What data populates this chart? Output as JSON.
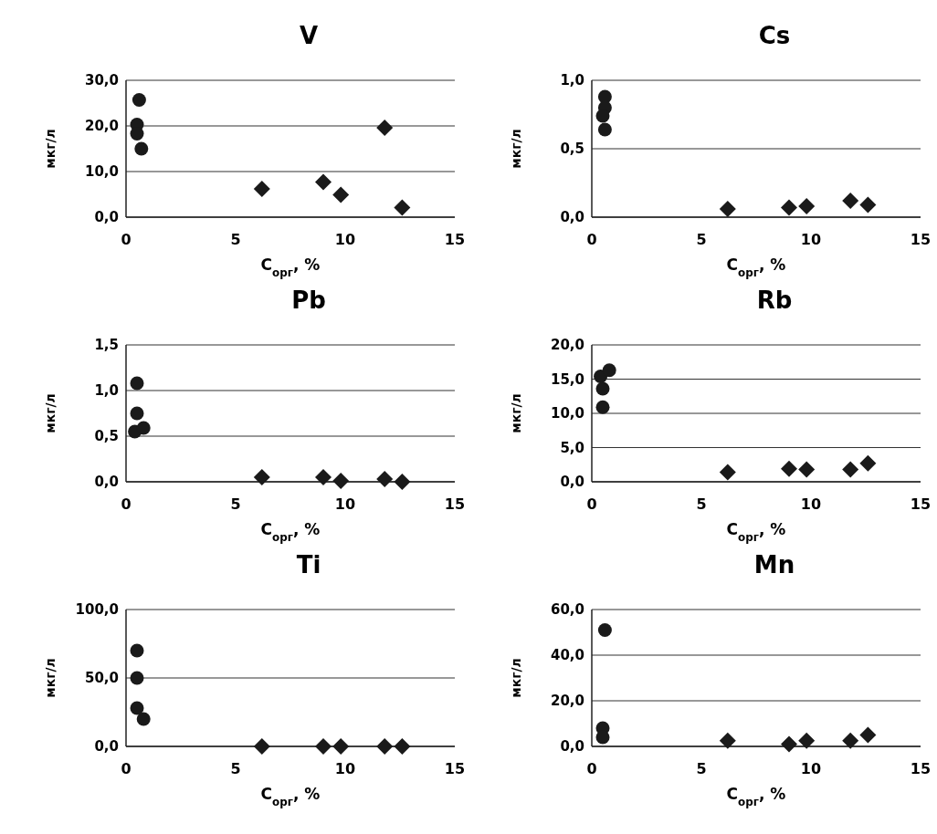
{
  "chart_data": [
    {
      "type": "scatter",
      "title": "V",
      "xlabel": "C$_{орг}$, %",
      "ylabel": "мкг/л",
      "xlim": [
        0,
        15
      ],
      "xticks": [
        0,
        5,
        10,
        15
      ],
      "ylim": [
        0,
        30
      ],
      "yticks": [
        {
          "value": 0,
          "label": "0,0"
        },
        {
          "value": 10,
          "label": "10,0"
        },
        {
          "value": 20,
          "label": "20,0"
        },
        {
          "value": 30,
          "label": "30,0"
        }
      ],
      "grid": "y",
      "series": [
        {
          "color": "#1a1a1a",
          "marker": "circle",
          "x": [
            0.6,
            0.5,
            0.5,
            0.7
          ],
          "values": [
            25.7,
            20.3,
            18.3,
            15
          ]
        },
        {
          "color": "#1a1a1a",
          "marker": "diamond",
          "x": [
            6.2,
            9.0,
            9.8,
            11.8,
            12.6
          ],
          "values": [
            6.2,
            7.7,
            4.9,
            19.6,
            2.1
          ]
        }
      ]
    },
    {
      "type": "scatter",
      "title": "Cs",
      "xlabel": "C$_{орг}$, %",
      "ylabel": "мкг/л",
      "xlim": [
        0,
        15
      ],
      "xticks": [
        0,
        5,
        10,
        15
      ],
      "ylim": [
        0,
        1
      ],
      "yticks": [
        {
          "value": 0,
          "label": "0,0"
        },
        {
          "value": 0.5,
          "label": "0,5"
        },
        {
          "value": 1,
          "label": "1,0"
        }
      ],
      "grid": "y",
      "series": [
        {
          "color": "#1a1a1a",
          "marker": "circle",
          "x": [
            0.6,
            0.6,
            0.5,
            0.6
          ],
          "values": [
            0.88,
            0.8,
            0.74,
            0.64
          ]
        },
        {
          "color": "#1a1a1a",
          "marker": "diamond",
          "x": [
            6.2,
            9.0,
            9.8,
            11.8,
            12.6
          ],
          "values": [
            0.06,
            0.07,
            0.08,
            0.12,
            0.09
          ]
        }
      ]
    },
    {
      "type": "scatter",
      "title": "Pb",
      "xlabel": "C$_{орг}$, %",
      "ylabel": "мкг/л",
      "xlim": [
        0,
        15
      ],
      "xticks": [
        0,
        5,
        10,
        15
      ],
      "ylim": [
        0,
        1.5
      ],
      "yticks": [
        {
          "value": 0,
          "label": "0,0"
        },
        {
          "value": 0.5,
          "label": "0,5"
        },
        {
          "value": 1,
          "label": "1,0"
        },
        {
          "value": 1.5,
          "label": "1,5"
        }
      ],
      "grid": "y",
      "series": [
        {
          "color": "#1a1a1a",
          "marker": "circle",
          "x": [
            0.5,
            0.5,
            0.4,
            0.8
          ],
          "values": [
            1.08,
            0.75,
            0.55,
            0.59
          ]
        },
        {
          "color": "#1a1a1a",
          "marker": "diamond",
          "x": [
            6.2,
            9.0,
            9.8,
            11.8,
            12.6
          ],
          "values": [
            0.05,
            0.05,
            0.01,
            0.03,
            0
          ]
        }
      ]
    },
    {
      "type": "scatter",
      "title": "Rb",
      "xlabel": "C$_{орг}$, %",
      "ylabel": "мкг/л",
      "xlim": [
        0,
        15
      ],
      "xticks": [
        0,
        5,
        10,
        15
      ],
      "ylim": [
        0,
        20
      ],
      "yticks": [
        {
          "value": 0,
          "label": "0,0"
        },
        {
          "value": 5,
          "label": "5,0"
        },
        {
          "value": 10,
          "label": "10,0"
        },
        {
          "value": 15,
          "label": "15,0"
        },
        {
          "value": 20,
          "label": "20,0"
        }
      ],
      "grid": "y",
      "series": [
        {
          "color": "#1a1a1a",
          "marker": "circle",
          "x": [
            0.4,
            0.5,
            0.5,
            0.8
          ],
          "values": [
            15.4,
            13.6,
            10.9,
            16.3
          ]
        },
        {
          "color": "#1a1a1a",
          "marker": "diamond",
          "x": [
            6.2,
            9.0,
            9.8,
            11.8,
            12.6
          ],
          "values": [
            1.4,
            1.9,
            1.8,
            1.8,
            2.7
          ]
        }
      ]
    },
    {
      "type": "scatter",
      "title": "Ti",
      "xlabel": "C$_{орг}$, %",
      "ylabel": "мкг/л",
      "xlim": [
        0,
        15
      ],
      "xticks": [
        0,
        5,
        10,
        15
      ],
      "ylim": [
        0,
        100
      ],
      "yticks": [
        {
          "value": 0,
          "label": "0,0"
        },
        {
          "value": 50,
          "label": "50,0"
        },
        {
          "value": 100,
          "label": "100,0"
        }
      ],
      "grid": "y",
      "series": [
        {
          "color": "#1a1a1a",
          "marker": "circle",
          "x": [
            0.5,
            0.5,
            0.5,
            0.8
          ],
          "values": [
            70,
            50,
            28,
            20
          ]
        },
        {
          "color": "#1a1a1a",
          "marker": "diamond",
          "x": [
            6.2,
            9.0,
            9.8,
            11.8,
            12.6
          ],
          "values": [
            0,
            0,
            0,
            0,
            0
          ]
        }
      ]
    },
    {
      "type": "scatter",
      "title": "Mn",
      "xlabel": "C$_{орг}$, %",
      "ylabel": "мкг/л",
      "xlim": [
        0,
        15
      ],
      "xticks": [
        0,
        5,
        10,
        15
      ],
      "ylim": [
        0,
        60
      ],
      "yticks": [
        {
          "value": 0,
          "label": "0,0"
        },
        {
          "value": 20,
          "label": "20,0"
        },
        {
          "value": 40,
          "label": "40,0"
        },
        {
          "value": 60,
          "label": "60,0"
        }
      ],
      "grid": "y",
      "series": [
        {
          "color": "#1a1a1a",
          "marker": "circle",
          "x": [
            0.6,
            0.5,
            0.5
          ],
          "values": [
            51,
            8,
            4
          ]
        },
        {
          "color": "#1a1a1a",
          "marker": "diamond",
          "x": [
            6.2,
            9.0,
            9.8,
            11.8,
            12.6
          ],
          "values": [
            2.5,
            1,
            2.5,
            2.5,
            5
          ]
        }
      ]
    }
  ]
}
